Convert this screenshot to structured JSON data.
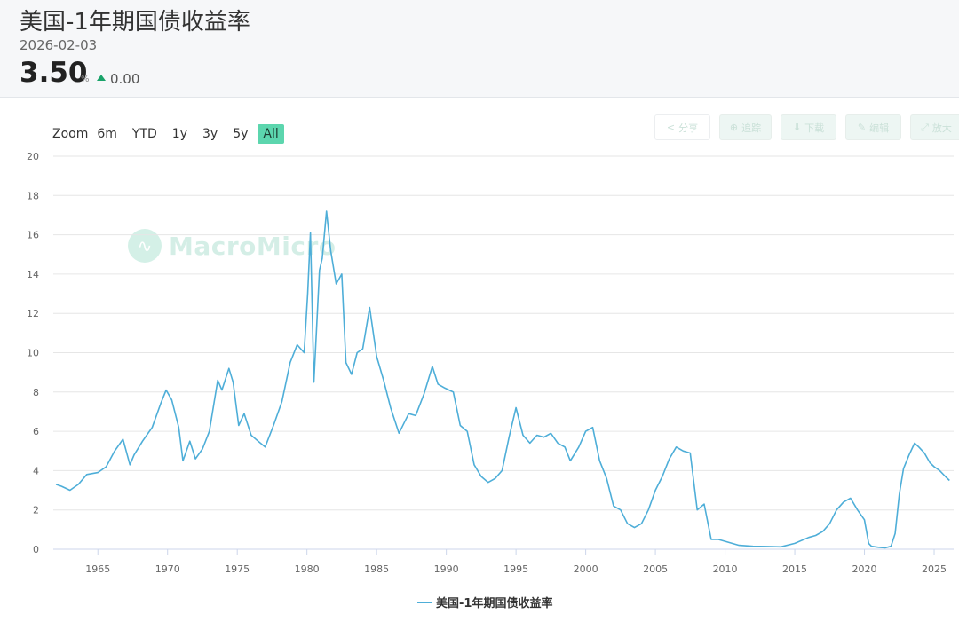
{
  "header": {
    "title": "美国-1年期国债收益率",
    "date": "2026-02-03",
    "value": "3.50",
    "unit": "%",
    "change": "0.00"
  },
  "range_selector": {
    "label": "Zoom",
    "buttons": [
      "6m",
      "YTD",
      "1y",
      "3y",
      "5y",
      "All"
    ],
    "active": "All"
  },
  "toolbar": {
    "share_label": "分享",
    "b2_label": "追踪",
    "b3_label": "下载",
    "b4_label": "编辑",
    "b5_label": "放大"
  },
  "watermark": "MacroMicro",
  "colors": {
    "line": "#4eaed8",
    "accent": "#5cd6ae",
    "up": "#1aa36a"
  },
  "chart_data": {
    "type": "line",
    "title": "",
    "xlabel": "",
    "ylabel": "",
    "xlim": [
      1961.8,
      2026.4
    ],
    "ylim": [
      0,
      20
    ],
    "x_ticks": [
      1965,
      1970,
      1975,
      1980,
      1985,
      1990,
      1995,
      2000,
      2005,
      2010,
      2015,
      2020,
      2025
    ],
    "y_ticks": [
      0,
      2,
      4,
      6,
      8,
      10,
      12,
      14,
      16,
      18,
      20
    ],
    "grid": true,
    "legend": "bottom-center",
    "series": [
      {
        "name": "美国-1年期国债收益率",
        "x": [
          1962.0,
          1962.4,
          1963.0,
          1963.6,
          1964.2,
          1965.0,
          1965.6,
          1966.2,
          1966.8,
          1967.3,
          1967.6,
          1968.2,
          1968.9,
          1969.5,
          1969.9,
          1970.3,
          1970.8,
          1971.1,
          1971.6,
          1972.0,
          1972.5,
          1973.0,
          1973.6,
          1973.9,
          1974.4,
          1974.7,
          1975.1,
          1975.5,
          1976.0,
          1976.5,
          1977.0,
          1977.6,
          1978.2,
          1978.8,
          1979.3,
          1979.8,
          1980.05,
          1980.25,
          1980.5,
          1980.9,
          1981.1,
          1981.4,
          1981.7,
          1982.1,
          1982.5,
          1982.8,
          1983.2,
          1983.6,
          1984.0,
          1984.5,
          1985.0,
          1985.5,
          1986.0,
          1986.6,
          1987.3,
          1987.8,
          1988.4,
          1989.0,
          1989.4,
          1989.9,
          1990.5,
          1991.0,
          1991.5,
          1992.0,
          1992.5,
          1993.0,
          1993.5,
          1994.0,
          1994.5,
          1995.0,
          1995.5,
          1996.0,
          1996.5,
          1997.0,
          1997.5,
          1998.0,
          1998.5,
          1998.9,
          1999.5,
          2000.0,
          2000.5,
          2001.0,
          2001.5,
          2002.0,
          2002.5,
          2003.0,
          2003.5,
          2004.0,
          2004.5,
          2005.0,
          2005.5,
          2006.0,
          2006.5,
          2007.0,
          2007.5,
          2008.0,
          2008.5,
          2009.0,
          2009.5,
          2010.0,
          2011.0,
          2012.0,
          2013.0,
          2014.0,
          2015.0,
          2016.0,
          2016.5,
          2017.0,
          2017.5,
          2018.0,
          2018.5,
          2019.0,
          2019.5,
          2020.0,
          2020.3,
          2020.5,
          2021.0,
          2021.5,
          2021.9,
          2022.2,
          2022.5,
          2022.8,
          2023.2,
          2023.6,
          2023.9,
          2024.3,
          2024.7,
          2025.0,
          2025.4,
          2025.8,
          2026.1
        ],
        "y": [
          3.3,
          3.2,
          3.0,
          3.3,
          3.8,
          3.9,
          4.2,
          5.0,
          5.6,
          4.3,
          4.8,
          5.5,
          6.2,
          7.4,
          8.1,
          7.6,
          6.2,
          4.5,
          5.5,
          4.6,
          5.1,
          6.0,
          8.6,
          8.1,
          9.2,
          8.5,
          6.3,
          6.9,
          5.8,
          5.5,
          5.2,
          6.3,
          7.5,
          9.5,
          10.4,
          10.0,
          13.0,
          16.1,
          8.5,
          14.2,
          14.8,
          17.2,
          15.2,
          13.5,
          14.0,
          9.5,
          8.9,
          10.0,
          10.2,
          12.3,
          9.8,
          8.6,
          7.2,
          5.9,
          6.9,
          6.8,
          7.9,
          9.3,
          8.4,
          8.2,
          8.0,
          6.3,
          6.0,
          4.3,
          3.7,
          3.4,
          3.6,
          4.0,
          5.7,
          7.2,
          5.8,
          5.4,
          5.8,
          5.7,
          5.9,
          5.4,
          5.2,
          4.5,
          5.2,
          6.0,
          6.2,
          4.5,
          3.6,
          2.2,
          2.0,
          1.3,
          1.1,
          1.3,
          2.0,
          3.0,
          3.7,
          4.6,
          5.2,
          5.0,
          4.9,
          2.0,
          2.3,
          0.5,
          0.5,
          0.4,
          0.2,
          0.15,
          0.14,
          0.12,
          0.3,
          0.6,
          0.7,
          0.9,
          1.3,
          2.0,
          2.4,
          2.6,
          2.0,
          1.5,
          0.3,
          0.15,
          0.1,
          0.07,
          0.15,
          0.8,
          2.8,
          4.1,
          4.8,
          5.4,
          5.2,
          4.9,
          4.4,
          4.2,
          4.0,
          3.7,
          3.5
        ]
      }
    ]
  }
}
